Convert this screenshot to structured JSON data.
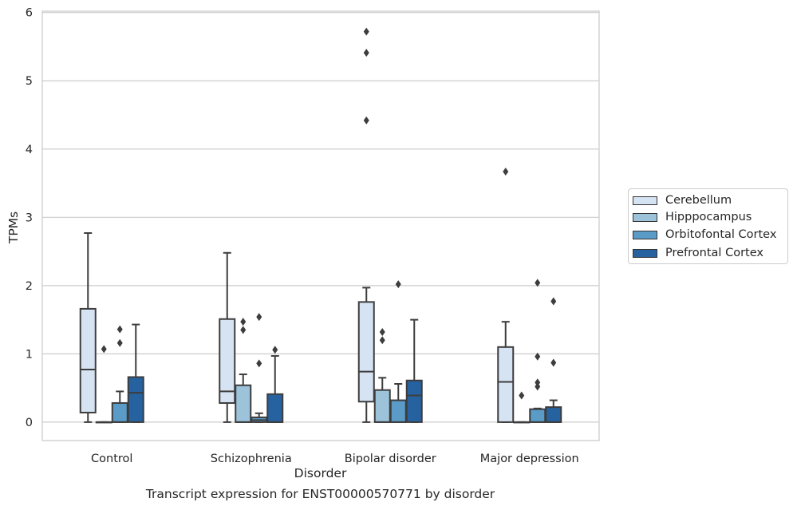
{
  "chart_data": {
    "type": "box",
    "title": "",
    "caption": "Transcript expression for ENST00000570771 by disorder",
    "xlabel": "Disorder",
    "ylabel": "TPMs",
    "ylim": [
      -0.27,
      6.02
    ],
    "yticks": [
      0,
      1,
      2,
      3,
      4,
      5,
      6
    ],
    "grid": "horizontal",
    "legend_position": "right",
    "categories": [
      "Control",
      "Schizophrenia",
      "Bipolar disorder",
      "Major depression"
    ],
    "series": [
      {
        "name": "Cerebellum",
        "color": "#d6e3f2",
        "boxes": [
          {
            "whislo": 0.0,
            "q1": 0.14,
            "med": 0.77,
            "q3": 1.66,
            "whishi": 2.77,
            "fliers": []
          },
          {
            "whislo": 0.0,
            "q1": 0.28,
            "med": 0.45,
            "q3": 1.51,
            "whishi": 2.48,
            "fliers": []
          },
          {
            "whislo": 0.0,
            "q1": 0.3,
            "med": 0.74,
            "q3": 1.76,
            "whishi": 1.97,
            "fliers": [
              4.42,
              5.41,
              5.72
            ]
          },
          {
            "whislo": 0.0,
            "q1": 0.0,
            "med": 0.59,
            "q3": 1.1,
            "whishi": 1.47,
            "fliers": [
              3.67
            ]
          }
        ]
      },
      {
        "name": "Hipppocampus",
        "color": "#9cc3da",
        "boxes": [
          {
            "whislo": 0.0,
            "q1": 0.0,
            "med": 0.0,
            "q3": 0.0,
            "whishi": 0.0,
            "fliers": [
              1.07
            ]
          },
          {
            "whislo": 0.0,
            "q1": 0.0,
            "med": 0.0,
            "q3": 0.54,
            "whishi": 0.7,
            "fliers": [
              1.35,
              1.47
            ]
          },
          {
            "whislo": 0.0,
            "q1": 0.0,
            "med": 0.0,
            "q3": 0.47,
            "whishi": 0.65,
            "fliers": [
              1.2,
              1.32
            ]
          },
          {
            "whislo": 0.0,
            "q1": 0.0,
            "med": 0.0,
            "q3": 0.0,
            "whishi": 0.0,
            "fliers": [
              0.39
            ]
          }
        ]
      },
      {
        "name": "Orbitofontal Cortex",
        "color": "#5a9bc8",
        "boxes": [
          {
            "whislo": 0.0,
            "q1": 0.0,
            "med": 0.0,
            "q3": 0.28,
            "whishi": 0.45,
            "fliers": [
              1.16,
              1.36
            ]
          },
          {
            "whislo": 0.0,
            "q1": 0.0,
            "med": 0.03,
            "q3": 0.07,
            "whishi": 0.13,
            "fliers": [
              0.86,
              1.54
            ]
          },
          {
            "whislo": 0.0,
            "q1": 0.0,
            "med": 0.0,
            "q3": 0.32,
            "whishi": 0.56,
            "fliers": [
              2.02
            ]
          },
          {
            "whislo": 0.0,
            "q1": 0.0,
            "med": 0.0,
            "q3": 0.19,
            "whishi": 0.2,
            "fliers": [
              0.52,
              0.58,
              0.96,
              2.04
            ]
          }
        ]
      },
      {
        "name": "Prefrontal Cortex",
        "color": "#26629f",
        "boxes": [
          {
            "whislo": 0.0,
            "q1": 0.0,
            "med": 0.43,
            "q3": 0.66,
            "whishi": 1.43,
            "fliers": []
          },
          {
            "whislo": 0.0,
            "q1": 0.0,
            "med": 0.0,
            "q3": 0.41,
            "whishi": 0.97,
            "fliers": [
              1.06
            ]
          },
          {
            "whislo": 0.0,
            "q1": 0.0,
            "med": 0.39,
            "q3": 0.61,
            "whishi": 1.5,
            "fliers": []
          },
          {
            "whislo": 0.0,
            "q1": 0.0,
            "med": 0.0,
            "q3": 0.22,
            "whishi": 0.32,
            "fliers": [
              0.87,
              1.77
            ]
          }
        ]
      }
    ]
  }
}
